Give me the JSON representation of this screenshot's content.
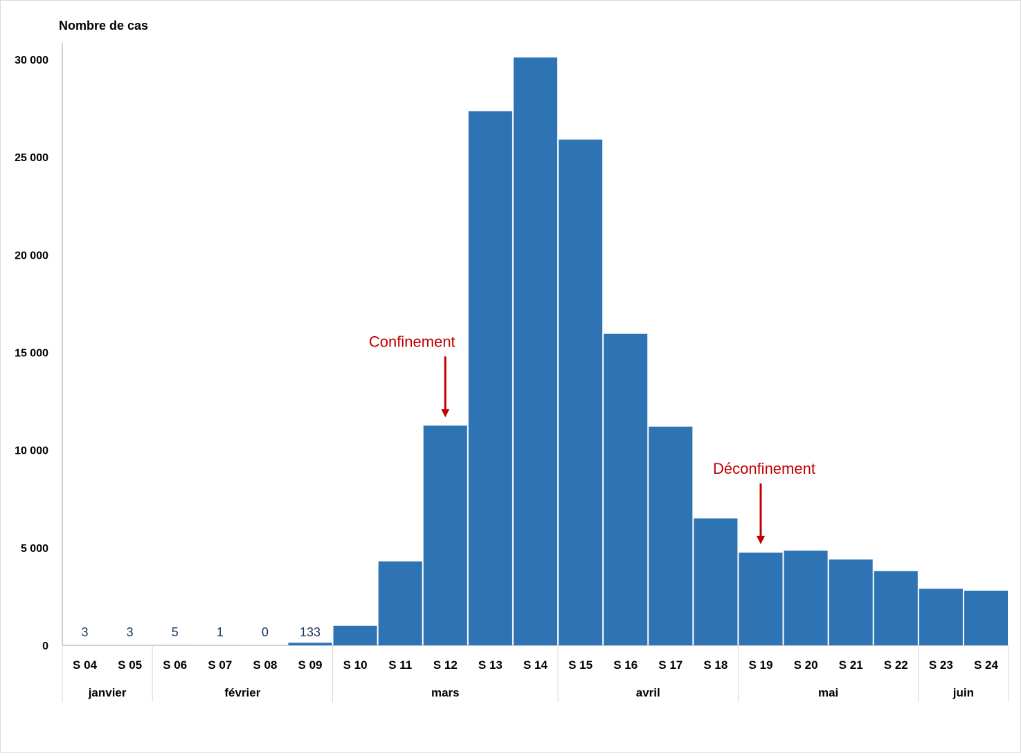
{
  "chart_data": {
    "type": "bar",
    "ylabel": "Nombre de cas",
    "ylim": [
      0,
      30000
    ],
    "yticks": [
      0,
      5000,
      10000,
      15000,
      20000,
      25000,
      30000
    ],
    "ytick_labels": [
      "0",
      "5 000",
      "10 000",
      "15 000",
      "20 000",
      "25 000",
      "30 000"
    ],
    "grid": false,
    "categories": [
      "S 04",
      "S 05",
      "S 06",
      "S 07",
      "S 08",
      "S 09",
      "S 10",
      "S 11",
      "S 12",
      "S 13",
      "S 14",
      "S 15",
      "S 16",
      "S 17",
      "S 18",
      "S 19",
      "S 20",
      "S 21",
      "S 22",
      "S 23",
      "S 24"
    ],
    "values": [
      3,
      3,
      5,
      1,
      0,
      133,
      1000,
      4300,
      11250,
      27350,
      30100,
      25900,
      15950,
      11200,
      6500,
      4750,
      4850,
      4400,
      3800,
      2900,
      2800
    ],
    "data_labels": [
      {
        "index": 0,
        "text": "3"
      },
      {
        "index": 1,
        "text": "3"
      },
      {
        "index": 2,
        "text": "5"
      },
      {
        "index": 3,
        "text": "1"
      },
      {
        "index": 4,
        "text": "0"
      },
      {
        "index": 5,
        "text": "133"
      }
    ],
    "months": [
      {
        "label": "janvier",
        "start": 0,
        "end": 1
      },
      {
        "label": "février",
        "start": 2,
        "end": 5
      },
      {
        "label": "mars",
        "start": 6,
        "end": 10
      },
      {
        "label": "avril",
        "start": 11,
        "end": 14
      },
      {
        "label": "mai",
        "start": 15,
        "end": 18
      },
      {
        "label": "juin",
        "start": 19,
        "end": 20
      }
    ],
    "annotations": [
      {
        "text": "Confinement",
        "index": 8,
        "y": 11250
      },
      {
        "text": "Déconfinement",
        "index": 15,
        "y": 4750
      }
    ],
    "colors": {
      "bar": "#2e74b5",
      "label": "#1f3864",
      "annotation": "#c00000"
    }
  }
}
